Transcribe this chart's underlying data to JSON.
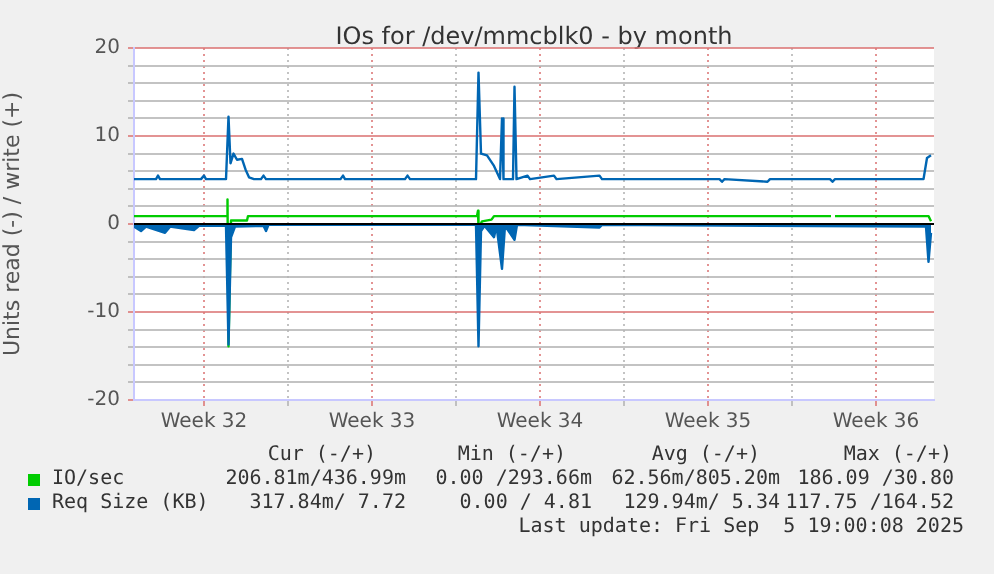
{
  "chart_data": {
    "type": "line",
    "title": "IOs for /dev/mmcblk0 - by month",
    "ylabel": "Units read (-) / write (+)",
    "xlim": [
      "2025-08-03T14:00",
      "2025-09-05T22:00"
    ],
    "ylim": [
      -20,
      20
    ],
    "xticks": [
      {
        "value": "2025-08-06T12:00",
        "label": "Week 32"
      },
      {
        "value": "2025-08-10",
        "label": null
      },
      {
        "value": "2025-08-13T12:00",
        "label": "Week 33"
      },
      {
        "value": "2025-08-17",
        "label": null
      },
      {
        "value": "2025-08-20T12:00",
        "label": "Week 34"
      },
      {
        "value": "2025-08-24",
        "label": null
      },
      {
        "value": "2025-08-27T12:00",
        "label": "Week 35"
      },
      {
        "value": "2025-08-31",
        "label": null
      },
      {
        "value": "2025-09-03T12:00",
        "label": "Week 36"
      }
    ],
    "yticks": [
      -20,
      {
        "value": -18,
        "label": null
      },
      {
        "value": -16,
        "label": null
      },
      {
        "value": -14,
        "label": null
      },
      {
        "value": -12,
        "label": null
      },
      -10,
      {
        "value": -8,
        "label": null
      },
      {
        "value": -6,
        "label": null
      },
      {
        "value": -4,
        "label": null
      },
      {
        "value": -2,
        "label": null
      },
      0,
      {
        "value": 2,
        "label": null
      },
      {
        "value": 4,
        "label": null
      },
      {
        "value": 6,
        "label": null
      },
      {
        "value": 8,
        "label": null
      },
      10,
      {
        "value": 12,
        "label": null
      },
      {
        "value": 14,
        "label": null
      },
      {
        "value": 16,
        "label": null
      },
      {
        "value": 18,
        "label": null
      },
      20
    ],
    "grid": true,
    "legend": "bottom left",
    "marker": "none",
    "ref_lines": [
      {
        "axis": "y",
        "value": 0,
        "color": "#000000"
      }
    ],
    "series": [
      {
        "type": "area",
        "color": "#0066b3",
        "x": [
          "2025-08-03T14:00",
          "2025-08-03T21:00",
          "2025-08-04T02:00",
          "2025-08-04T21:00",
          "2025-08-05T02:00",
          "2025-08-06T02:00",
          "2025-08-06T07:00",
          "2025-08-07T10:00",
          "2025-08-07T12:30",
          "2025-08-07T15:00",
          "2025-08-07T19:00",
          "2025-08-08T23:30",
          "2025-08-09T02:00",
          "2025-08-09T04:30",
          "2025-08-17T20:00",
          "2025-08-17T22:30",
          "2025-08-18T01:00",
          "2025-08-18T04:30",
          "2025-08-18T14:00",
          "2025-08-18T16:30",
          "2025-08-18T22:00",
          "2025-08-19T01:00",
          "2025-08-19T10:30",
          "2025-08-19T13:00",
          "2025-08-22T23:30",
          "2025-08-23T02:00",
          "2025-09-05T14:00",
          "2025-09-05T16:30",
          "2025-09-05T19:00"
        ],
        "values": [
          -0.3,
          -0.8,
          -0.3,
          -1.0,
          -0.3,
          -0.7,
          -0.2,
          -0.2,
          -13.7,
          -1.5,
          -0.3,
          -0.2,
          -0.8,
          -0.1,
          -0.1,
          -13.9,
          -0.8,
          -0.2,
          -1.5,
          -0.2,
          -5.1,
          -0.2,
          -1.8,
          -0.1,
          -0.4,
          -0.1,
          -0.3,
          -4.3,
          -1.0
        ]
      },
      {
        "name": "Req Size (KB)",
        "color": "#0066b3",
        "x": [
          "2025-08-03T14:00",
          "2025-08-04T12:00",
          "2025-08-04T14:00",
          "2025-08-04T16:00",
          "2025-08-06T09:00",
          "2025-08-06T12:00",
          "2025-08-06T14:00",
          "2025-08-07T10:00",
          "2025-08-07T12:30",
          "2025-08-07T14:30",
          "2025-08-07T17:30",
          "2025-08-07T21:00",
          "2025-08-08T02:00",
          "2025-08-08T05:30",
          "2025-08-08T09:00",
          "2025-08-08T14:00",
          "2025-08-08T21:00",
          "2025-08-08T23:30",
          "2025-08-09T02:00",
          "2025-08-12T04:30",
          "2025-08-12T07:00",
          "2025-08-12T09:00",
          "2025-08-14T21:00",
          "2025-08-14T23:30",
          "2025-08-15T02:00",
          "2025-08-17T20:00",
          "2025-08-17T22:30",
          "2025-08-18T01:00",
          "2025-08-18T07:00",
          "2025-08-18T14:00",
          "2025-08-18T20:00",
          "2025-08-18T22:00",
          "2025-08-18T23:30",
          "2025-08-19T09:00",
          "2025-08-19T10:30",
          "2025-08-19T12:30",
          "2025-08-19T23:30",
          "2025-08-20T02:00",
          "2025-08-21T02:00",
          "2025-08-21T04:30",
          "2025-08-22T23:30",
          "2025-08-23T02:00",
          "2025-08-27T23:30",
          "2025-08-28T02:00",
          "2025-08-28T04:30",
          "2025-08-29T23:30",
          "2025-08-30T02:00",
          "2025-09-01T14:00",
          "2025-09-01T16:30",
          "2025-09-01T19:00",
          "2025-09-05T11:30",
          "2025-09-05T15:00",
          "2025-09-05T19:00"
        ],
        "values": [
          5.1,
          5.1,
          5.5,
          5.1,
          5.1,
          5.5,
          5.1,
          5.1,
          12.2,
          6.9,
          8.0,
          7.3,
          7.4,
          6.2,
          5.3,
          5.1,
          5.1,
          5.5,
          5.1,
          5.1,
          5.5,
          5.1,
          5.1,
          5.5,
          5.1,
          5.1,
          17.2,
          8.0,
          7.8,
          6.6,
          5.1,
          12.0,
          5.1,
          5.1,
          15.6,
          5.1,
          5.5,
          5.1,
          5.5,
          5.1,
          5.5,
          5.1,
          5.1,
          4.8,
          5.1,
          4.8,
          5.1,
          5.1,
          4.8,
          5.1,
          5.1,
          7.5,
          7.8
        ]
      },
      {
        "name": "IO/sec",
        "color": "#00cc00",
        "x": [
          "2025-08-03T14:00",
          "2025-08-07T10:00",
          "2025-08-07T11:30",
          "2025-08-07T12:30",
          "2025-08-07T15:00",
          "2025-08-08T07:00",
          "2025-08-08T08:00",
          "2025-08-17T21:00",
          "2025-08-17T22:00",
          "2025-08-17T22:30",
          "2025-08-18T02:00",
          "2025-08-18T11:30",
          "2025-08-18T14:00",
          "2025-09-01T15:00",
          "2025-09-01T16:30",
          "2025-09-01T19:00",
          "2025-09-05T16:30",
          "2025-09-05T19:00"
        ],
        "values": [
          0.9,
          0.9,
          2.8,
          -13.9,
          0.4,
          0.4,
          0.9,
          0.9,
          1.5,
          -0.5,
          0.3,
          0.5,
          0.9,
          0.9,
          null,
          0.9,
          0.9,
          0.3
        ]
      }
    ],
    "annotations": [
      "Cur (-/+)",
      "Min (-/+)",
      "Avg (-/+)",
      "Max (-/+)",
      "206.81m/436.99m",
      "0.00 /293.66m",
      "62.56m/805.20m",
      "186.09 /30.80",
      "317.84m/ 7.72",
      "0.00 / 4.81",
      "129.94m/ 5.34",
      "117.75 /164.52",
      "Last update: Fri Sep  5 19:00:08 2025"
    ]
  }
}
